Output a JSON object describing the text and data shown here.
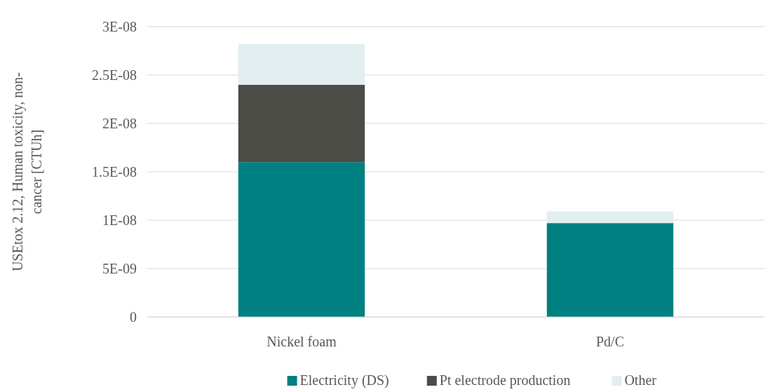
{
  "chart_data": {
    "type": "bar",
    "stacked": true,
    "ylabel": "USEtox 2.12, Human toxicity, non-cancer [CTUh]",
    "categories": [
      "Nickel foam",
      "Pd/C"
    ],
    "series": [
      {
        "name": "Electricity (DS)",
        "color": "#008080",
        "values": [
          1.6e-08,
          9.7e-09
        ]
      },
      {
        "name": "Pt electrode production",
        "color": "#4d4d48",
        "values": [
          8e-09,
          0
        ]
      },
      {
        "name": "Other",
        "color": "#e2eef0",
        "values": [
          4.2e-09,
          1.2e-09
        ]
      }
    ],
    "ylim": [
      0,
      3e-08
    ],
    "yticks": [
      0,
      {
        "value": 5e-09,
        "label": "5E-09"
      },
      {
        "value": 1e-08,
        "label": "1E-08"
      },
      {
        "value": 1.5e-08,
        "label": "1.5E-08"
      },
      {
        "value": 2e-08,
        "label": "2E-08"
      },
      {
        "value": 2.5e-08,
        "label": "2.5E-08"
      },
      {
        "value": 3e-08,
        "label": "3E-08"
      }
    ],
    "grid": "y",
    "legend": "bottom"
  }
}
